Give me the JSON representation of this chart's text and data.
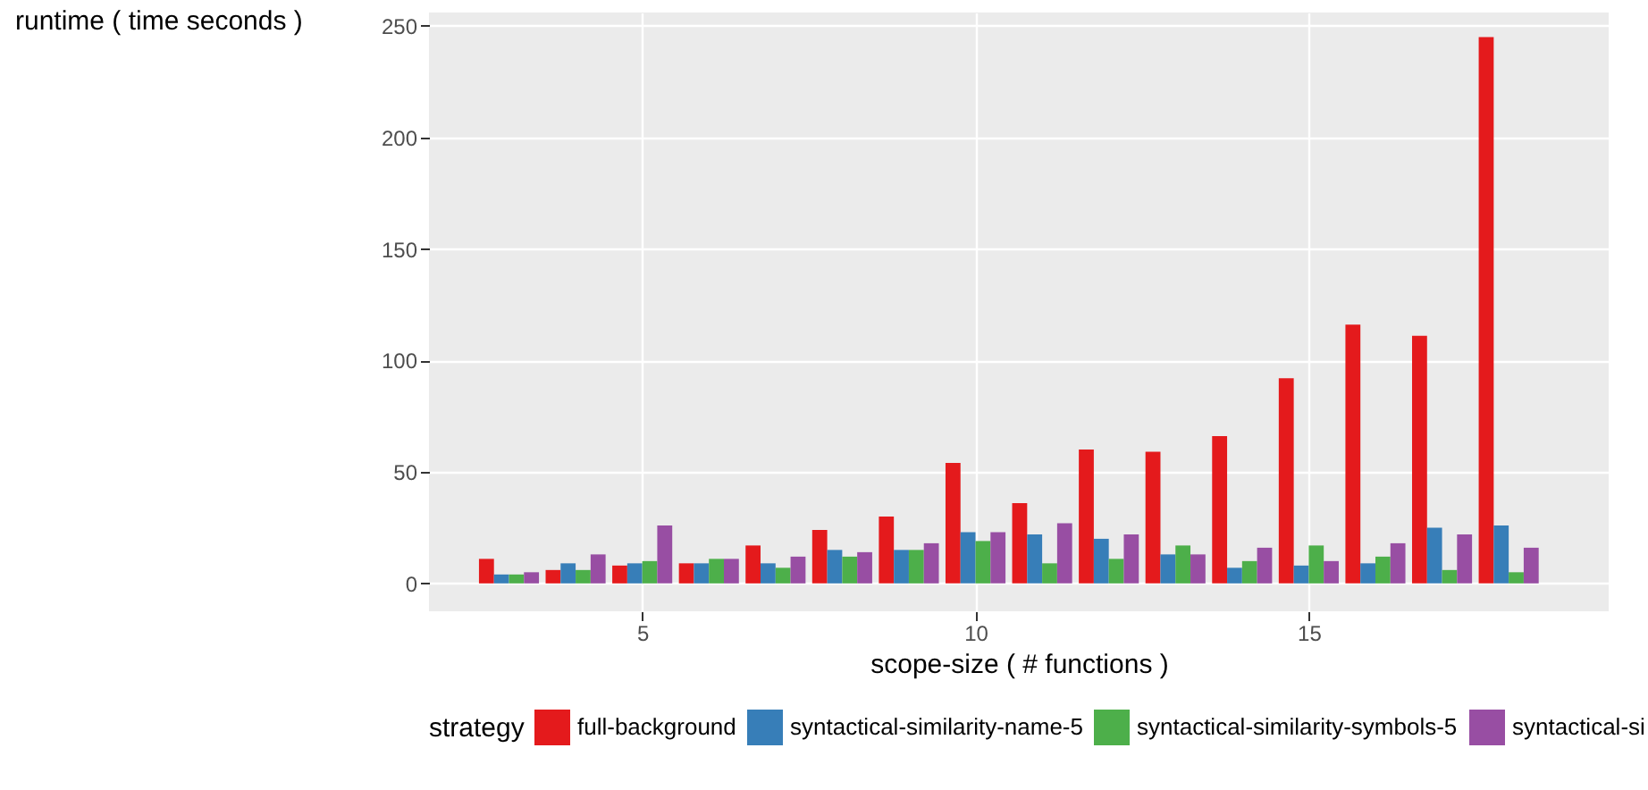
{
  "chart_data": {
    "type": "bar",
    "xlabel": "scope-size ( # functions )",
    "ylabel": "runtime ( time seconds )",
    "legend_title": "strategy",
    "x": [
      3,
      4,
      5,
      6,
      7,
      8,
      9,
      10,
      11,
      12,
      13,
      14,
      15,
      16,
      17,
      18
    ],
    "series": [
      {
        "name": "full-background",
        "color": "#e41a1c",
        "values": [
          11,
          6,
          8,
          9,
          17,
          24,
          30,
          54,
          36,
          60,
          59,
          66,
          92,
          116,
          111,
          245
        ]
      },
      {
        "name": "syntactical-similarity-name-5",
        "color": "#377eb8",
        "values": [
          4,
          9,
          9,
          9,
          9,
          15,
          15,
          23,
          22,
          20,
          13,
          7,
          8,
          9,
          25,
          26
        ]
      },
      {
        "name": "syntactical-similarity-symbols-5",
        "color": "#4daf4a",
        "values": [
          4,
          6,
          10,
          11,
          7,
          12,
          15,
          19,
          9,
          11,
          17,
          10,
          17,
          12,
          6,
          5
        ]
      },
      {
        "name": "syntactical-si",
        "color": "#984ea3",
        "values": [
          5,
          13,
          26,
          11,
          12,
          14,
          18,
          23,
          27,
          22,
          13,
          16,
          10,
          18,
          22,
          16
        ]
      }
    ],
    "xlim": [
      1.8,
      19.5
    ],
    "ylim": [
      -12.5,
      256
    ],
    "xticks": [
      5,
      10,
      15
    ],
    "yticks": [
      0,
      50,
      100,
      150,
      200,
      250
    ],
    "grid": true,
    "legend": "bottom"
  }
}
